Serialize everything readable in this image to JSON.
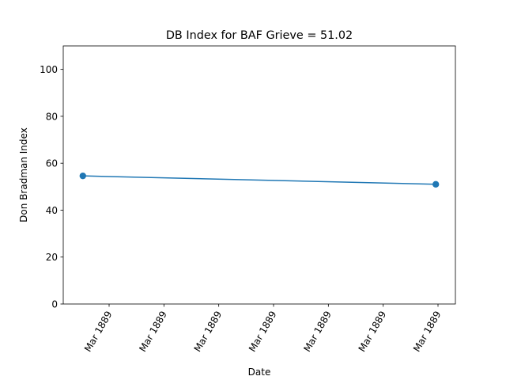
{
  "chart_data": {
    "type": "line",
    "title": "DB Index for BAF Grieve = 51.02",
    "xlabel": "Date",
    "ylabel": "Don Bradman Index",
    "ylim": [
      0,
      110
    ],
    "yticks": [
      0,
      20,
      40,
      60,
      80,
      100
    ],
    "x_tick_labels": [
      "Mar 1889",
      "Mar 1889",
      "Mar 1889",
      "Mar 1889",
      "Mar 1889",
      "Mar 1889",
      "Mar 1889"
    ],
    "grid": false,
    "series": [
      {
        "color": "#1f77b4",
        "marker": "circle",
        "points": [
          {
            "x": "1889-03-14",
            "y": 54.6
          },
          {
            "x": "1889-03-25",
            "y": 51.02
          }
        ]
      }
    ]
  }
}
